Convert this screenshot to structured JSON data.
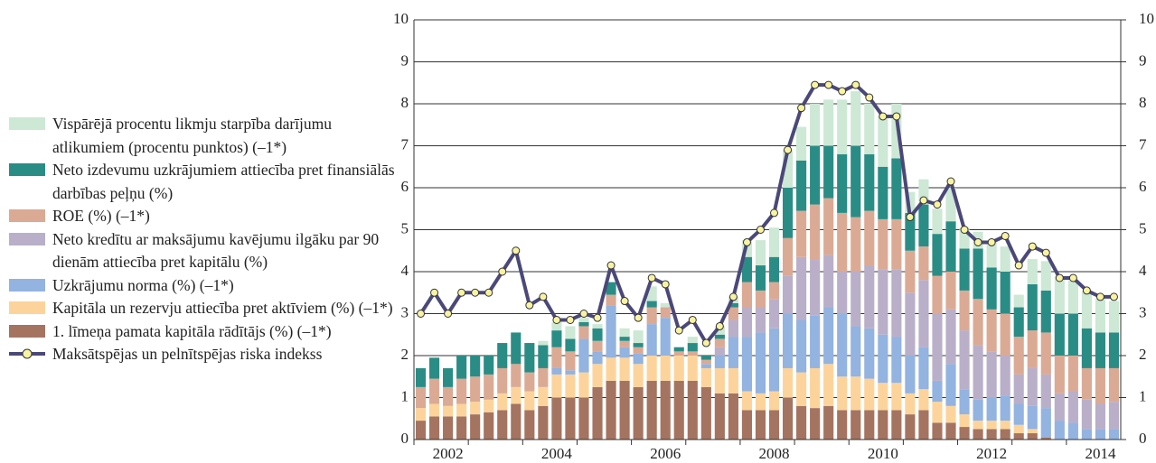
{
  "chart_data": {
    "type": "bar-line",
    "categories": [
      null,
      null,
      "2002",
      null,
      null,
      null,
      null,
      null,
      null,
      null,
      "2004",
      null,
      null,
      null,
      null,
      null,
      null,
      null,
      "2006",
      null,
      null,
      null,
      null,
      null,
      null,
      null,
      "2008",
      null,
      null,
      null,
      null,
      null,
      null,
      null,
      "2010",
      null,
      null,
      null,
      null,
      null,
      null,
      null,
      "2012",
      null,
      null,
      null,
      null,
      null,
      null,
      null,
      "2014",
      null
    ],
    "ylim": [
      0,
      10
    ],
    "yticks": [
      0,
      1,
      2,
      3,
      4,
      5,
      6,
      7,
      8,
      9,
      10
    ],
    "y2lim": [
      0,
      10
    ],
    "y2ticks": [
      0,
      1,
      2,
      3,
      4,
      5,
      6,
      7,
      8,
      9,
      10
    ],
    "grid": true,
    "series": [
      {
        "name": "1. līmeņa pamata kapitāla rādītājs (%) (–1*)",
        "color": "#a47461",
        "values": [
          0.45,
          0.55,
          0.55,
          0.55,
          0.6,
          0.65,
          0.7,
          0.85,
          0.7,
          0.8,
          1.0,
          1.0,
          1.0,
          1.25,
          1.4,
          1.4,
          1.25,
          1.4,
          1.4,
          1.4,
          1.4,
          1.25,
          1.1,
          1.1,
          0.7,
          0.7,
          0.7,
          1.0,
          0.8,
          0.75,
          0.8,
          0.7,
          0.7,
          0.7,
          0.7,
          0.7,
          0.6,
          0.7,
          0.4,
          0.4,
          0.3,
          0.25,
          0.25,
          0.25,
          0.15,
          0.15,
          0.05,
          0,
          0,
          0,
          0,
          0
        ]
      },
      {
        "name": "Kapitāla un rezervju attiecība pret aktīviem (%) (–1*)",
        "color": "#fcd49b",
        "values": [
          0.3,
          0.3,
          0.25,
          0.3,
          0.3,
          0.3,
          0.4,
          0.4,
          0.45,
          0.45,
          0.55,
          0.55,
          0.6,
          0.55,
          0.55,
          0.55,
          0.55,
          0.6,
          0.6,
          0.6,
          0.6,
          0.45,
          0.6,
          0.6,
          0.45,
          0.4,
          0.45,
          0.7,
          0.8,
          0.95,
          1.0,
          0.8,
          0.8,
          0.75,
          0.65,
          0.65,
          0.5,
          0.5,
          0.5,
          0.4,
          0.3,
          0.2,
          0.2,
          0.2,
          0.2,
          0.1,
          0,
          0,
          0,
          0,
          0,
          0
        ]
      },
      {
        "name": "Uzkrājumu norma (%) (–1*)",
        "color": "#93b3e0",
        "values": [
          0,
          0,
          0,
          0,
          0,
          0,
          0,
          0,
          0,
          0,
          0.15,
          0.1,
          0.8,
          0.3,
          1.25,
          0.25,
          0.25,
          0.75,
          0.9,
          0,
          0,
          0.1,
          0.3,
          0.75,
          1.3,
          1.45,
          1.5,
          1.3,
          1.25,
          1.25,
          1.35,
          1.5,
          1.2,
          1.2,
          1.15,
          1.1,
          0.9,
          1.0,
          0.5,
          1.0,
          0.6,
          0.5,
          0.55,
          0.6,
          0.5,
          0.55,
          0.7,
          0.45,
          0.4,
          0.25,
          0.25,
          0.25
        ]
      },
      {
        "name": "Neto kredītu ar maksājumu kavējumu ilgāku par 90 dienām attiecība pret kapitālu (%)",
        "color": "#b9afc9",
        "values": [
          0,
          0,
          0,
          0,
          0,
          0,
          0,
          0,
          0,
          0,
          0,
          0,
          0,
          0,
          0,
          0,
          0,
          0,
          0,
          0,
          0,
          0,
          0.2,
          0.4,
          0.7,
          0.6,
          0.7,
          0.9,
          1.5,
          1.35,
          1.25,
          1.0,
          1.3,
          1.5,
          1.55,
          1.6,
          1.5,
          1.6,
          1.6,
          1.3,
          1.4,
          1.3,
          1.1,
          0.95,
          0.7,
          0.9,
          0.8,
          0.65,
          0.75,
          0.7,
          0.6,
          0.65
        ]
      },
      {
        "name": "ROE (%) (–1*)",
        "color": "#dbaa94",
        "values": [
          0.5,
          0.6,
          0.45,
          0.6,
          0.6,
          0.6,
          0.6,
          0.55,
          0.45,
          0.45,
          0.5,
          0.45,
          0.3,
          0.25,
          0.25,
          0.15,
          0.15,
          0.4,
          0.25,
          0.1,
          0.1,
          0.1,
          0.2,
          0.3,
          0.6,
          0.4,
          0.4,
          0.9,
          1.1,
          1.3,
          1.35,
          1.4,
          1.3,
          1.3,
          1.2,
          1.2,
          1.0,
          0.8,
          0.9,
          0.9,
          0.95,
          1.1,
          1.0,
          1.0,
          0.9,
          0.9,
          1.0,
          0.9,
          0.85,
          0.75,
          0.85,
          0.8
        ]
      },
      {
        "name": "Neto izdevumu uzkrājumiem attiecība pret finansiālās darbības peļņu (%)",
        "color": "#2a8d85",
        "values": [
          0.45,
          0.5,
          0.45,
          0.55,
          0.5,
          0.45,
          0.6,
          0.75,
          0.7,
          0.55,
          0.4,
          0.3,
          0.1,
          0.3,
          0.3,
          0.1,
          0.1,
          0.15,
          0,
          0.1,
          0.2,
          0.1,
          0.1,
          0.1,
          0.6,
          0.6,
          0.6,
          1.2,
          1.2,
          1.4,
          1.25,
          1.4,
          1.7,
          1.35,
          1.25,
          1.45,
          0.9,
          1.0,
          1.0,
          1.2,
          1.0,
          1.2,
          1.0,
          1.0,
          0.7,
          1.1,
          1.0,
          1.0,
          1.0,
          0.95,
          0.85,
          0.85
        ]
      },
      {
        "name": "Vispārējā procentu likmju starpība darījumu atlikumiem (procentu punktos) (–1*)",
        "color": "#cde8d5",
        "values": [
          0,
          0,
          0,
          0,
          0,
          0,
          0,
          0,
          0,
          0.1,
          0.2,
          0.3,
          0.1,
          0.1,
          0,
          0.2,
          0.3,
          0.35,
          0.1,
          0,
          0.15,
          0,
          0.2,
          0.15,
          0.4,
          0.6,
          0.7,
          0.9,
          0.8,
          1.0,
          1.1,
          1.3,
          1.3,
          1.2,
          1.2,
          1.3,
          0.5,
          0.6,
          0.6,
          0.8,
          0.5,
          0.4,
          0.6,
          0.6,
          0.3,
          0.6,
          0.7,
          0.9,
          0.8,
          0.9,
          0.8,
          0.75
        ]
      },
      {
        "name": "Maksātspējas un pelnītspējas riska indekss",
        "color": "#4b4879",
        "marker_color": "#f8f3a2",
        "line": true,
        "values": [
          3.0,
          3.5,
          3.0,
          3.5,
          3.5,
          3.5,
          4.0,
          4.5,
          3.2,
          3.4,
          2.85,
          2.85,
          3.0,
          2.9,
          4.15,
          3.3,
          2.9,
          3.85,
          3.7,
          2.6,
          2.85,
          2.3,
          2.7,
          3.4,
          4.7,
          5.0,
          5.4,
          6.9,
          7.9,
          8.45,
          8.45,
          8.3,
          8.45,
          8.15,
          7.7,
          7.7,
          5.3,
          5.7,
          5.6,
          6.15,
          5.0,
          4.7,
          4.7,
          4.85,
          4.15,
          4.6,
          4.45,
          3.85,
          3.85,
          3.55,
          3.4,
          3.4
        ]
      }
    ]
  }
}
